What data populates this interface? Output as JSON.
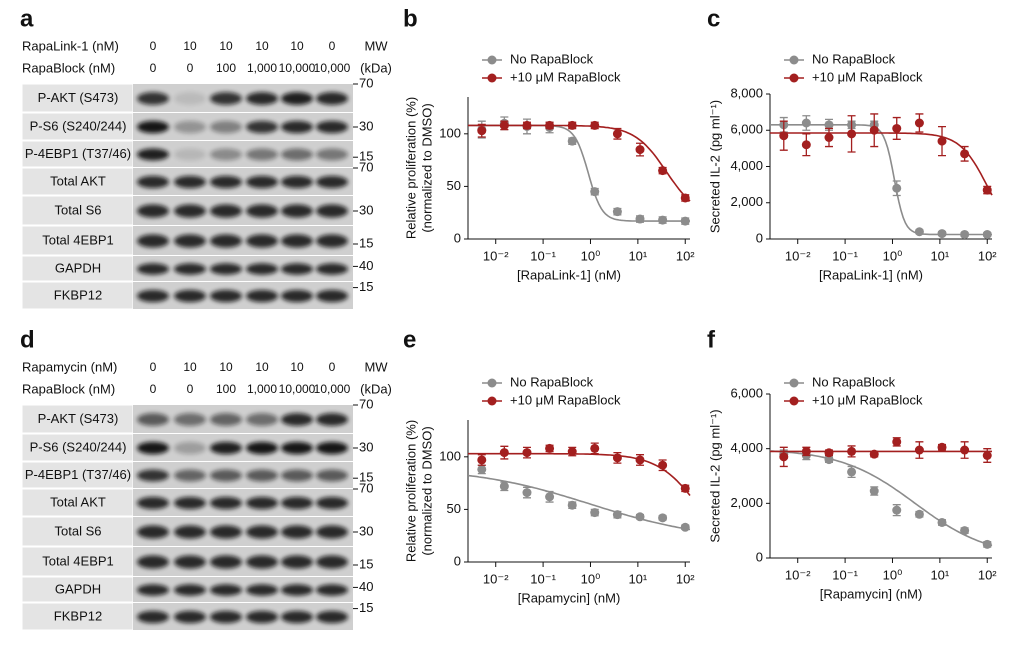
{
  "blots": [
    {
      "label": "a",
      "treatments": [
        {
          "name": "RapaLink-1 (nM)",
          "lanes": [
            "0",
            "10",
            "10",
            "10",
            "10",
            "0"
          ]
        },
        {
          "name": "RapaBlock (nM)",
          "lanes": [
            "0",
            "0",
            "100",
            "1,000",
            "10,000",
            "10,000"
          ]
        }
      ],
      "mw_header": [
        "MW",
        "(kDa)"
      ],
      "rows": [
        {
          "label": "P-AKT (S473)",
          "mw": "70"
        },
        {
          "label": "P-S6 (S240/244)",
          "mw": "30"
        },
        {
          "label": "P-4EBP1 (T37/46)",
          "mw": "15"
        },
        {
          "label": "Total AKT",
          "mw": "70"
        },
        {
          "label": "Total S6",
          "mw": "30"
        },
        {
          "label": "Total 4EBP1",
          "mw": "15"
        },
        {
          "label": "GAPDH",
          "mw": "40"
        },
        {
          "label": "FKBP12",
          "mw": "15"
        }
      ]
    },
    {
      "label": "d",
      "treatments": [
        {
          "name": "Rapamycin (nM)",
          "lanes": [
            "0",
            "10",
            "10",
            "10",
            "10",
            "0"
          ]
        },
        {
          "name": "RapaBlock (nM)",
          "lanes": [
            "0",
            "0",
            "100",
            "1,000",
            "10,000",
            "10,000"
          ]
        }
      ],
      "mw_header": [
        "MW",
        "(kDa)"
      ],
      "rows": [
        {
          "label": "P-AKT (S473)",
          "mw": "70"
        },
        {
          "label": "P-S6 (S240/244)",
          "mw": "30"
        },
        {
          "label": "P-4EBP1 (T37/46)",
          "mw": "15"
        },
        {
          "label": "Total AKT",
          "mw": "70"
        },
        {
          "label": "Total S6",
          "mw": "30"
        },
        {
          "label": "Total 4EBP1",
          "mw": "15"
        },
        {
          "label": "GAPDH",
          "mw": "40"
        },
        {
          "label": "FKBP12",
          "mw": "15"
        }
      ]
    }
  ],
  "chart_data": [
    {
      "type": "scatter",
      "panel": "b",
      "x_label": "[RapaLink-1] (nM)",
      "y_label": [
        "Relative proliferation (%)",
        "(normalized to DMSO)"
      ],
      "log_x": true,
      "xlim": [
        0.0026,
        126
      ],
      "xticks": [
        {
          "value": 0.01,
          "label": "10⁻²"
        },
        {
          "value": 0.1,
          "label": "10⁻¹"
        },
        {
          "value": 1,
          "label": "10⁰"
        },
        {
          "value": 10,
          "label": "10¹"
        },
        {
          "value": 100,
          "label": "10²"
        }
      ],
      "ylim": [
        0,
        135
      ],
      "yticks": [
        0,
        50,
        100
      ],
      "x": [
        0.00508,
        0.0152,
        0.0457,
        0.137,
        0.412,
        1.23,
        3.7,
        11.1,
        33.3,
        100
      ],
      "series": [
        {
          "name": "No RapaBlock",
          "color": "#8c8c8c",
          "values": [
            104,
            110,
            107,
            106,
            93,
            45,
            26,
            19,
            18,
            17
          ],
          "errors": [
            8,
            6,
            7,
            5,
            3,
            3,
            3,
            3,
            3,
            3
          ],
          "fit": {
            "top": 108,
            "bottom": 17,
            "ec50": 0.9,
            "hill": 3
          }
        },
        {
          "name": "+10 μM RapaBlock",
          "color": "#a31f1f",
          "values": [
            103,
            108,
            108,
            108,
            108,
            108,
            100,
            85,
            65,
            39
          ],
          "errors": [
            6,
            4,
            3,
            3,
            3,
            3,
            5,
            6,
            3,
            3
          ],
          "fit": {
            "top": 108,
            "bottom": 20,
            "ec50": 40,
            "hill": 1.3
          }
        }
      ]
    },
    {
      "type": "scatter",
      "panel": "c",
      "x_label": "[RapaLink-1] (nM)",
      "y_label": [
        "Secreted IL-2 (pg ml⁻¹)"
      ],
      "log_x": true,
      "xlim": [
        0.0026,
        126
      ],
      "xticks": [
        {
          "value": 0.01,
          "label": "10⁻²"
        },
        {
          "value": 0.1,
          "label": "10⁻¹"
        },
        {
          "value": 1,
          "label": "10⁰"
        },
        {
          "value": 10,
          "label": "10¹"
        },
        {
          "value": 100,
          "label": "10²"
        }
      ],
      "ylim": [
        0,
        8000
      ],
      "yticks": [
        0,
        {
          "value": 2000,
          "label": "2,000"
        },
        {
          "value": 4000,
          "label": "4,000"
        },
        {
          "value": 6000,
          "label": "6,000"
        },
        {
          "value": 8000,
          "label": "8,000"
        }
      ],
      "x": [
        0.00508,
        0.0152,
        0.0457,
        0.137,
        0.412,
        1.23,
        3.7,
        11.1,
        33.3,
        100
      ],
      "series": [
        {
          "name": "No RapaBlock",
          "color": "#8c8c8c",
          "values": [
            6300,
            6400,
            6300,
            6300,
            6300,
            2800,
            400,
            300,
            250,
            250
          ],
          "errors": [
            400,
            400,
            300,
            200,
            200,
            400,
            100,
            100,
            100,
            100
          ],
          "fit": {
            "top": 6300,
            "bottom": 250,
            "ec50": 1.1,
            "hill": 4
          }
        },
        {
          "name": "+10 μM RapaBlock",
          "color": "#a31f1f",
          "values": [
            5700,
            5200,
            5600,
            5800,
            6000,
            6100,
            6400,
            5400,
            4700,
            2700
          ],
          "errors": [
            800,
            600,
            500,
            1000,
            900,
            600,
            500,
            800,
            400,
            200
          ],
          "fit": {
            "top": 5850,
            "bottom": 0,
            "ec50": 100,
            "hill": 1.5
          }
        }
      ]
    },
    {
      "type": "scatter",
      "panel": "e",
      "x_label": "[Rapamycin] (nM)",
      "y_label": [
        "Relative proliferation (%)",
        "(normalized to DMSO)"
      ],
      "log_x": true,
      "xlim": [
        0.0026,
        126
      ],
      "xticks": [
        {
          "value": 0.01,
          "label": "10⁻²"
        },
        {
          "value": 0.1,
          "label": "10⁻¹"
        },
        {
          "value": 1,
          "label": "10⁰"
        },
        {
          "value": 10,
          "label": "10¹"
        },
        {
          "value": 100,
          "label": "10²"
        }
      ],
      "ylim": [
        0,
        135
      ],
      "yticks": [
        0,
        50,
        100
      ],
      "x": [
        0.00508,
        0.0152,
        0.0457,
        0.137,
        0.412,
        1.23,
        3.7,
        11.1,
        33.3,
        100
      ],
      "series": [
        {
          "name": "No RapaBlock",
          "color": "#8c8c8c",
          "values": [
            88,
            72,
            66,
            62,
            54,
            47,
            45,
            43,
            42,
            33
          ],
          "errors": [
            4,
            4,
            5,
            5,
            3,
            3,
            3,
            2,
            2,
            2
          ],
          "fit": {
            "top": 90,
            "bottom": 20,
            "ec50": 1,
            "hill": 0.35
          }
        },
        {
          "name": "+10 μM RapaBlock",
          "color": "#a31f1f",
          "values": [
            97,
            104,
            104,
            108,
            105,
            108,
            99,
            97,
            92,
            70
          ],
          "errors": [
            5,
            6,
            5,
            3,
            4,
            5,
            5,
            5,
            5,
            3
          ],
          "fit": {
            "top": 103,
            "bottom": 0,
            "ec50": 200,
            "hill": 1
          }
        }
      ]
    },
    {
      "type": "scatter",
      "panel": "f",
      "x_label": "[Rapamycin] (nM)",
      "y_label": [
        "Secreted IL-2 (pg ml⁻¹)"
      ],
      "log_x": true,
      "xlim": [
        0.0026,
        126
      ],
      "xticks": [
        {
          "value": 0.01,
          "label": "10⁻²"
        },
        {
          "value": 0.1,
          "label": "10⁻¹"
        },
        {
          "value": 1,
          "label": "10⁰"
        },
        {
          "value": 10,
          "label": "10¹"
        },
        {
          "value": 100,
          "label": "10²"
        }
      ],
      "ylim": [
        0,
        6000
      ],
      "yticks": [
        0,
        {
          "value": 2000,
          "label": "2,000"
        },
        {
          "value": 4000,
          "label": "4,000"
        },
        {
          "value": 6000,
          "label": "6,000"
        }
      ],
      "x": [
        0.00508,
        0.0152,
        0.0457,
        0.137,
        0.412,
        1.23,
        3.7,
        11.1,
        33.3,
        100
      ],
      "series": [
        {
          "name": "No RapaBlock",
          "color": "#8c8c8c",
          "values": [
            3800,
            3750,
            3600,
            3150,
            2450,
            1750,
            1600,
            1300,
            1000,
            500
          ],
          "errors": [
            150,
            150,
            100,
            200,
            150,
            200,
            100,
            100,
            100,
            100
          ],
          "fit": {
            "top": 4000,
            "bottom": 0,
            "ec50": 3,
            "hill": 0.55
          }
        },
        {
          "name": "+10 μM RapaBlock",
          "color": "#a31f1f",
          "values": [
            3700,
            3900,
            3850,
            3900,
            3800,
            4250,
            3950,
            4050,
            3950,
            3750
          ],
          "errors": [
            350,
            150,
            100,
            200,
            100,
            150,
            300,
            100,
            300,
            250
          ],
          "fit": {
            "top": 3900,
            "bottom": 3900,
            "ec50": 1,
            "hill": 1
          }
        }
      ]
    }
  ]
}
